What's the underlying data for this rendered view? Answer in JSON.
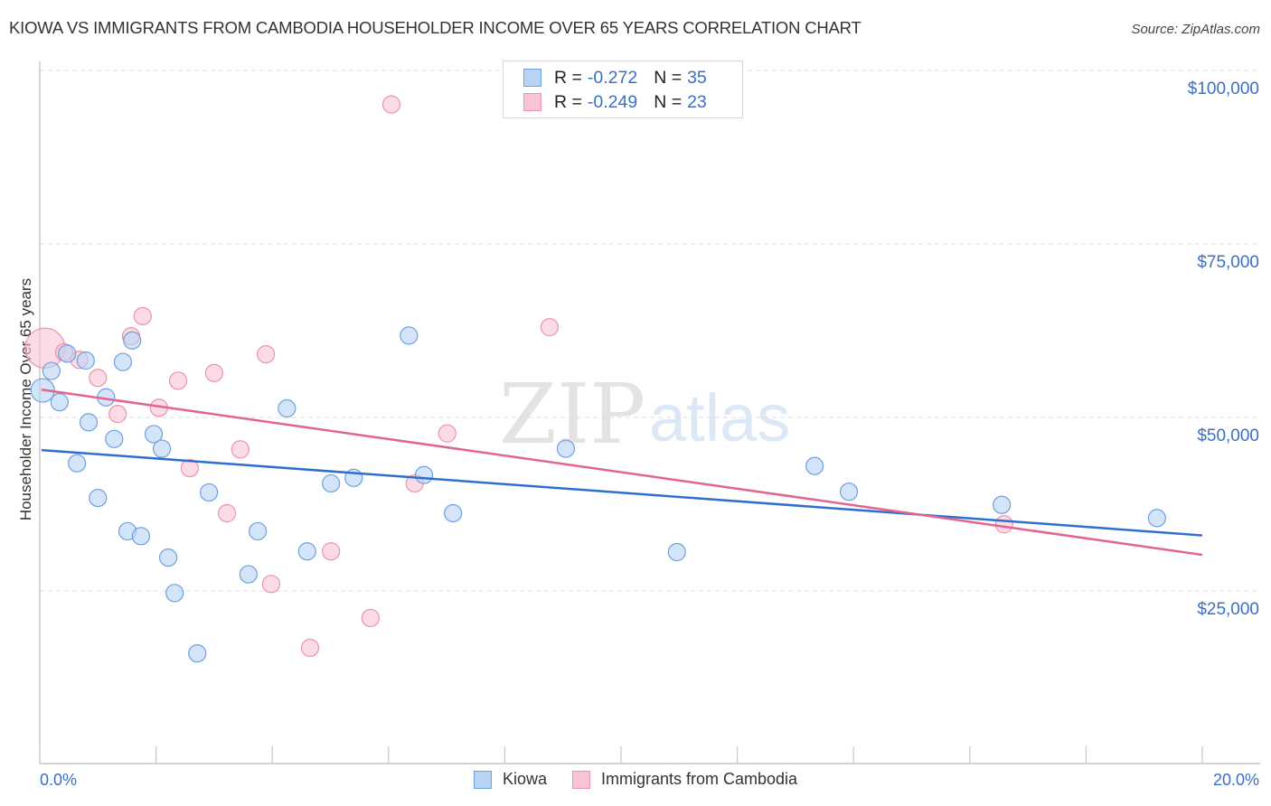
{
  "header": {
    "title": "KIOWA VS IMMIGRANTS FROM CAMBODIA HOUSEHOLDER INCOME OVER 65 YEARS CORRELATION CHART",
    "source": "Source: ZipAtlas.com"
  },
  "legend_top": {
    "rows": [
      {
        "r_label": "R =",
        "r_value": "-0.272",
        "n_label": "N =",
        "n_value": "35"
      },
      {
        "r_label": "R =",
        "r_value": "-0.249",
        "n_label": "N =",
        "n_value": "23"
      }
    ]
  },
  "legend_bottom": {
    "items": [
      {
        "label": "Kiowa"
      },
      {
        "label": "Immigrants from Cambodia"
      }
    ]
  },
  "axes": {
    "ylabel": "Householder Income Over 65 years",
    "yticks": [
      "$100,000",
      "$75,000",
      "$50,000",
      "$25,000"
    ],
    "xticks": [
      "0.0%",
      "20.0%"
    ]
  },
  "watermark": {
    "zip": "ZIP",
    "atlas": "atlas"
  },
  "colors": {
    "kiowa_fill": "#b9d3f5",
    "kiowa_stroke": "#6e9fe0",
    "kiowa_line": "#2d6fd1",
    "cambodia_fill": "#f9c5d5",
    "cambodia_stroke": "#ec92ad",
    "cambodia_line": "#e3648f",
    "tick_text": "#3a6fc8"
  },
  "chart_data": {
    "type": "scatter",
    "title": "Kiowa vs Immigrants from Cambodia Householder Income Over 65 Years Correlation Chart",
    "xlabel": "",
    "ylabel": "Householder Income Over 65 years",
    "xlim": [
      0,
      20
    ],
    "ylim": [
      0,
      102000
    ],
    "x_unit": "%",
    "y_ticks": [
      25000,
      50000,
      75000,
      100000
    ],
    "x_ticks": [
      0,
      20
    ],
    "grid": true,
    "legend_position": "top-center and bottom",
    "series": [
      {
        "name": "Kiowa",
        "r": -0.272,
        "n": 35,
        "trend": {
          "x": [
            0.0,
            20.0
          ],
          "y": [
            45300,
            33000
          ]
        },
        "points": [
          [
            0.05,
            53900
          ],
          [
            0.2,
            56700
          ],
          [
            0.34,
            52200
          ],
          [
            0.47,
            59200
          ],
          [
            0.64,
            43400
          ],
          [
            0.79,
            58200
          ],
          [
            0.84,
            49300
          ],
          [
            1.0,
            38400
          ],
          [
            1.14,
            52900
          ],
          [
            1.28,
            46900
          ],
          [
            1.43,
            58000
          ],
          [
            1.51,
            33600
          ],
          [
            1.59,
            61100
          ],
          [
            1.74,
            32900
          ],
          [
            1.96,
            47600
          ],
          [
            2.1,
            45500
          ],
          [
            2.21,
            29800
          ],
          [
            2.32,
            24700
          ],
          [
            2.71,
            16000
          ],
          [
            2.91,
            39200
          ],
          [
            3.59,
            27400
          ],
          [
            3.75,
            33600
          ],
          [
            4.25,
            51300
          ],
          [
            4.6,
            30700
          ],
          [
            5.01,
            40500
          ],
          [
            5.4,
            41300
          ],
          [
            6.35,
            61800
          ],
          [
            6.61,
            41700
          ],
          [
            7.11,
            36200
          ],
          [
            9.05,
            45500
          ],
          [
            10.96,
            30600
          ],
          [
            13.33,
            43000
          ],
          [
            13.92,
            39300
          ],
          [
            16.55,
            37400
          ],
          [
            19.22,
            35500
          ]
        ]
      },
      {
        "name": "Immigrants from Cambodia",
        "r": -0.249,
        "n": 23,
        "trend": {
          "x": [
            0.0,
            20.0
          ],
          "y": [
            54000,
            30200
          ]
        },
        "points": [
          [
            0.09,
            60000
          ],
          [
            0.42,
            59400
          ],
          [
            0.68,
            58300
          ],
          [
            1.0,
            55700
          ],
          [
            1.34,
            50500
          ],
          [
            1.57,
            61700
          ],
          [
            1.77,
            64600
          ],
          [
            2.05,
            51400
          ],
          [
            2.38,
            55300
          ],
          [
            2.58,
            42700
          ],
          [
            3.0,
            56400
          ],
          [
            3.22,
            36200
          ],
          [
            3.45,
            45400
          ],
          [
            3.89,
            59100
          ],
          [
            3.98,
            26000
          ],
          [
            4.65,
            16800
          ],
          [
            5.01,
            30700
          ],
          [
            5.69,
            21100
          ],
          [
            6.05,
            95100
          ],
          [
            6.45,
            40500
          ],
          [
            7.01,
            47700
          ],
          [
            8.77,
            63000
          ],
          [
            16.59,
            34600
          ]
        ]
      }
    ]
  }
}
